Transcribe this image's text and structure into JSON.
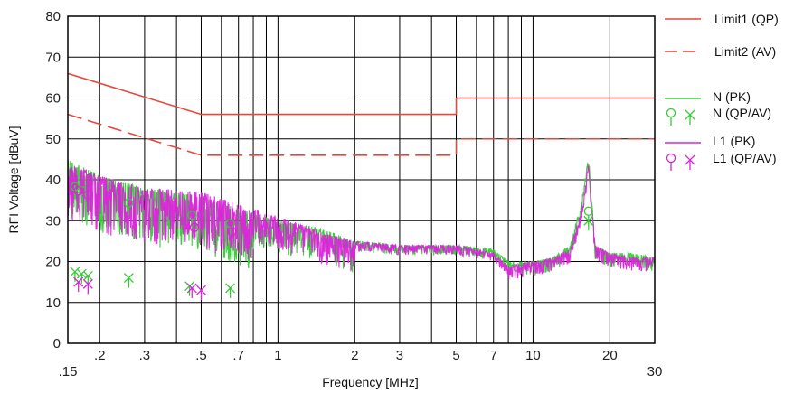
{
  "chart_data": {
    "type": "line",
    "xlabel": "Frequency [MHz]",
    "ylabel": "RFI Voltage [dBuV]",
    "x_scale": "log",
    "xlim": [
      0.15,
      30
    ],
    "ylim": [
      0,
      80
    ],
    "y_ticks": [
      0,
      10,
      20,
      30,
      40,
      50,
      60,
      70,
      80
    ],
    "y_tick_labels": [
      "0",
      "10",
      "20",
      "30",
      "40",
      "50",
      "60",
      "70",
      "80"
    ],
    "x_ticks": [
      0.15,
      0.2,
      0.3,
      0.5,
      0.7,
      1,
      2,
      3,
      5,
      7,
      10,
      20,
      30
    ],
    "x_tick_labels": [
      ".15",
      ".2",
      ".3",
      ".5",
      ".7",
      "1",
      "2",
      "3",
      "5",
      "7",
      "10",
      "20",
      "30"
    ],
    "x_minor": [
      0.4,
      0.6,
      0.8,
      0.9,
      4,
      6,
      8,
      9
    ],
    "grid": true,
    "legend_position": "right",
    "legend": [
      {
        "label": "Limit1 (QP)",
        "color": "#e8463a",
        "style": "solid"
      },
      {
        "label": "Limit2 (AV)",
        "color": "#e8463a",
        "style": "dashed"
      },
      {
        "label": "N (PK)",
        "color": "#33cc33",
        "style": "solid"
      },
      {
        "label": "N (QP/AV)",
        "color": "#33cc33",
        "style": "markers"
      },
      {
        "label": "L1 (PK)",
        "color": "#dd22dd",
        "style": "solid"
      },
      {
        "label": "L1 (QP/AV)",
        "color": "#dd22dd",
        "style": "markers"
      }
    ],
    "limits": [
      {
        "name": "Limit1 (QP)",
        "color": "#e8463a",
        "dash": false,
        "x": [
          0.15,
          0.5,
          0.5,
          5,
          5,
          30
        ],
        "y": [
          66,
          56,
          56,
          56,
          60,
          60
        ]
      },
      {
        "name": "Limit2 (AV)",
        "color": "#e8463a",
        "dash": true,
        "x": [
          0.15,
          0.5,
          0.5,
          5,
          5,
          30
        ],
        "y": [
          56,
          46,
          46,
          46,
          50,
          50
        ]
      }
    ],
    "series": [
      {
        "name": "N (PK)",
        "color": "#33cc33",
        "x": [
          0.15,
          0.2,
          0.3,
          0.5,
          0.7,
          1,
          1.5,
          2,
          3,
          5,
          7,
          8,
          10,
          12,
          14,
          15.5,
          16.5,
          17.5,
          20,
          25,
          30
        ],
        "y": [
          45,
          41,
          38,
          36,
          33,
          30,
          28,
          25,
          24,
          24,
          23,
          20,
          20,
          21,
          24,
          35,
          46,
          24,
          22,
          22,
          21
        ]
      },
      {
        "name": "L1 (PK)",
        "color": "#dd22dd",
        "x": [
          0.15,
          0.2,
          0.3,
          0.5,
          0.7,
          1,
          1.5,
          2,
          3,
          5,
          7,
          8,
          10,
          12,
          14,
          15.5,
          16.5,
          17.5,
          20,
          25,
          30
        ],
        "y": [
          44,
          41,
          38,
          37,
          34,
          31,
          27,
          25,
          24,
          24,
          22,
          19,
          20,
          21,
          23,
          33,
          44,
          24,
          22,
          21,
          21
        ]
      }
    ],
    "markers": [
      {
        "series": "N (QP/AV)",
        "color": "#33cc33",
        "qp": [
          [
            0.16,
            37
          ],
          [
            0.17,
            36
          ],
          [
            0.26,
            33
          ],
          [
            0.46,
            30
          ],
          [
            0.65,
            28
          ],
          [
            16.5,
            31
          ]
        ],
        "av": [
          [
            0.16,
            17.5
          ],
          [
            0.17,
            17
          ],
          [
            0.18,
            16.5
          ],
          [
            0.26,
            16
          ],
          [
            0.45,
            14
          ],
          [
            0.65,
            13.5
          ],
          [
            16.5,
            30
          ]
        ]
      },
      {
        "series": "L1 (QP/AV)",
        "color": "#dd22dd",
        "qp": [
          [
            0.165,
            36
          ],
          [
            0.18,
            35
          ],
          [
            0.47,
            27
          ],
          [
            0.66,
            26
          ]
        ],
        "av": [
          [
            0.165,
            15
          ],
          [
            0.18,
            14.5
          ],
          [
            0.46,
            13.5
          ],
          [
            0.5,
            13
          ]
        ]
      }
    ]
  }
}
